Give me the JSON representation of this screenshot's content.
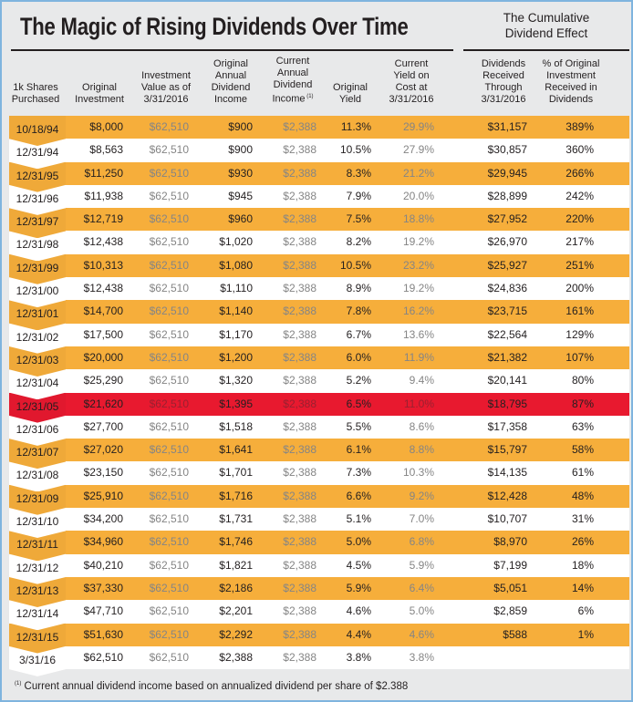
{
  "title": "The Magic of Rising Dividends Over Time",
  "cumulative_header": "The Cumulative\nDividend Effect",
  "colors": {
    "highlight": "#f6ae3b",
    "alert": "#e8192f",
    "plain": "#ffffff"
  },
  "columns": [
    "1k Shares\nPurchased",
    "Original\nInvestment",
    "Investment\nValue as of\n3/31/2016",
    "Original\nAnnual\nDividend\nIncome",
    "Current\nAnnual\nDividend\nIncome",
    "Original\nYield",
    "Current\nYield on\nCost at\n3/31/2016",
    "Dividends\nReceived\nThrough\n3/31/2016",
    "% of Original\nInvestment\nReceived in\nDividends"
  ],
  "footnote_mark": "(1)",
  "rows": [
    {
      "style": "orange",
      "date": "10/18/94",
      "orig": "$8,000",
      "value": "$62,510",
      "orig_div": "$900",
      "cur_div": "$2,388",
      "orig_yield": "11.3%",
      "cur_yield": "29.9%",
      "received": "$31,157",
      "pct": "389%"
    },
    {
      "style": "white",
      "date": "12/31/94",
      "orig": "$8,563",
      "value": "$62,510",
      "orig_div": "$900",
      "cur_div": "$2,388",
      "orig_yield": "10.5%",
      "cur_yield": "27.9%",
      "received": "$30,857",
      "pct": "360%"
    },
    {
      "style": "orange",
      "date": "12/31/95",
      "orig": "$11,250",
      "value": "$62,510",
      "orig_div": "$930",
      "cur_div": "$2,388",
      "orig_yield": "8.3%",
      "cur_yield": "21.2%",
      "received": "$29,945",
      "pct": "266%"
    },
    {
      "style": "white",
      "date": "12/31/96",
      "orig": "$11,938",
      "value": "$62,510",
      "orig_div": "$945",
      "cur_div": "$2,388",
      "orig_yield": "7.9%",
      "cur_yield": "20.0%",
      "received": "$28,899",
      "pct": "242%"
    },
    {
      "style": "orange",
      "date": "12/31/97",
      "orig": "$12,719",
      "value": "$62,510",
      "orig_div": "$960",
      "cur_div": "$2,388",
      "orig_yield": "7.5%",
      "cur_yield": "18.8%",
      "received": "$27,952",
      "pct": "220%"
    },
    {
      "style": "white",
      "date": "12/31/98",
      "orig": "$12,438",
      "value": "$62,510",
      "orig_div": "$1,020",
      "cur_div": "$2,388",
      "orig_yield": "8.2%",
      "cur_yield": "19.2%",
      "received": "$26,970",
      "pct": "217%"
    },
    {
      "style": "orange",
      "date": "12/31/99",
      "orig": "$10,313",
      "value": "$62,510",
      "orig_div": "$1,080",
      "cur_div": "$2,388",
      "orig_yield": "10.5%",
      "cur_yield": "23.2%",
      "received": "$25,927",
      "pct": "251%"
    },
    {
      "style": "white",
      "date": "12/31/00",
      "orig": "$12,438",
      "value": "$62,510",
      "orig_div": "$1,110",
      "cur_div": "$2,388",
      "orig_yield": "8.9%",
      "cur_yield": "19.2%",
      "received": "$24,836",
      "pct": "200%"
    },
    {
      "style": "orange",
      "date": "12/31/01",
      "orig": "$14,700",
      "value": "$62,510",
      "orig_div": "$1,140",
      "cur_div": "$2,388",
      "orig_yield": "7.8%",
      "cur_yield": "16.2%",
      "received": "$23,715",
      "pct": "161%"
    },
    {
      "style": "white",
      "date": "12/31/02",
      "orig": "$17,500",
      "value": "$62,510",
      "orig_div": "$1,170",
      "cur_div": "$2,388",
      "orig_yield": "6.7%",
      "cur_yield": "13.6%",
      "received": "$22,564",
      "pct": "129%"
    },
    {
      "style": "orange",
      "date": "12/31/03",
      "orig": "$20,000",
      "value": "$62,510",
      "orig_div": "$1,200",
      "cur_div": "$2,388",
      "orig_yield": "6.0%",
      "cur_yield": "11.9%",
      "received": "$21,382",
      "pct": "107%"
    },
    {
      "style": "white",
      "date": "12/31/04",
      "orig": "$25,290",
      "value": "$62,510",
      "orig_div": "$1,320",
      "cur_div": "$2,388",
      "orig_yield": "5.2%",
      "cur_yield": "9.4%",
      "received": "$20,141",
      "pct": "80%"
    },
    {
      "style": "red",
      "date": "12/31/05",
      "orig": "$21,620",
      "value": "$62,510",
      "orig_div": "$1,395",
      "cur_div": "$2,388",
      "orig_yield": "6.5%",
      "cur_yield": "11.0%",
      "received": "$18,795",
      "pct": "87%"
    },
    {
      "style": "white",
      "date": "12/31/06",
      "orig": "$27,700",
      "value": "$62,510",
      "orig_div": "$1,518",
      "cur_div": "$2,388",
      "orig_yield": "5.5%",
      "cur_yield": "8.6%",
      "received": "$17,358",
      "pct": "63%"
    },
    {
      "style": "orange",
      "date": "12/31/07",
      "orig": "$27,020",
      "value": "$62,510",
      "orig_div": "$1,641",
      "cur_div": "$2,388",
      "orig_yield": "6.1%",
      "cur_yield": "8.8%",
      "received": "$15,797",
      "pct": "58%"
    },
    {
      "style": "white",
      "date": "12/31/08",
      "orig": "$23,150",
      "value": "$62,510",
      "orig_div": "$1,701",
      "cur_div": "$2,388",
      "orig_yield": "7.3%",
      "cur_yield": "10.3%",
      "received": "$14,135",
      "pct": "61%"
    },
    {
      "style": "orange",
      "date": "12/31/09",
      "orig": "$25,910",
      "value": "$62,510",
      "orig_div": "$1,716",
      "cur_div": "$2,388",
      "orig_yield": "6.6%",
      "cur_yield": "9.2%",
      "received": "$12,428",
      "pct": "48%"
    },
    {
      "style": "white",
      "date": "12/31/10",
      "orig": "$34,200",
      "value": "$62,510",
      "orig_div": "$1,731",
      "cur_div": "$2,388",
      "orig_yield": "5.1%",
      "cur_yield": "7.0%",
      "received": "$10,707",
      "pct": "31%"
    },
    {
      "style": "orange",
      "date": "12/31/11",
      "orig": "$34,960",
      "value": "$62,510",
      "orig_div": "$1,746",
      "cur_div": "$2,388",
      "orig_yield": "5.0%",
      "cur_yield": "6.8%",
      "received": "$8,970",
      "pct": "26%"
    },
    {
      "style": "white",
      "date": "12/31/12",
      "orig": "$40,210",
      "value": "$62,510",
      "orig_div": "$1,821",
      "cur_div": "$2,388",
      "orig_yield": "4.5%",
      "cur_yield": "5.9%",
      "received": "$7,199",
      "pct": "18%"
    },
    {
      "style": "orange",
      "date": "12/31/13",
      "orig": "$37,330",
      "value": "$62,510",
      "orig_div": "$2,186",
      "cur_div": "$2,388",
      "orig_yield": "5.9%",
      "cur_yield": "6.4%",
      "received": "$5,051",
      "pct": "14%"
    },
    {
      "style": "white",
      "date": "12/31/14",
      "orig": "$47,710",
      "value": "$62,510",
      "orig_div": "$2,201",
      "cur_div": "$2,388",
      "orig_yield": "4.6%",
      "cur_yield": "5.0%",
      "received": "$2,859",
      "pct": "6%"
    },
    {
      "style": "orange",
      "date": "12/31/15",
      "orig": "$51,630",
      "value": "$62,510",
      "orig_div": "$2,292",
      "cur_div": "$2,388",
      "orig_yield": "4.4%",
      "cur_yield": "4.6%",
      "received": "$588",
      "pct": "1%"
    },
    {
      "style": "white",
      "date": "3/31/16",
      "orig": "$62,510",
      "value": "$62,510",
      "orig_div": "$2,388",
      "cur_div": "$2,388",
      "orig_yield": "3.8%",
      "cur_yield": "3.8%",
      "received": "",
      "pct": ""
    }
  ],
  "footnote": "Current annual dividend income based on annualized dividend per share of $2.388"
}
